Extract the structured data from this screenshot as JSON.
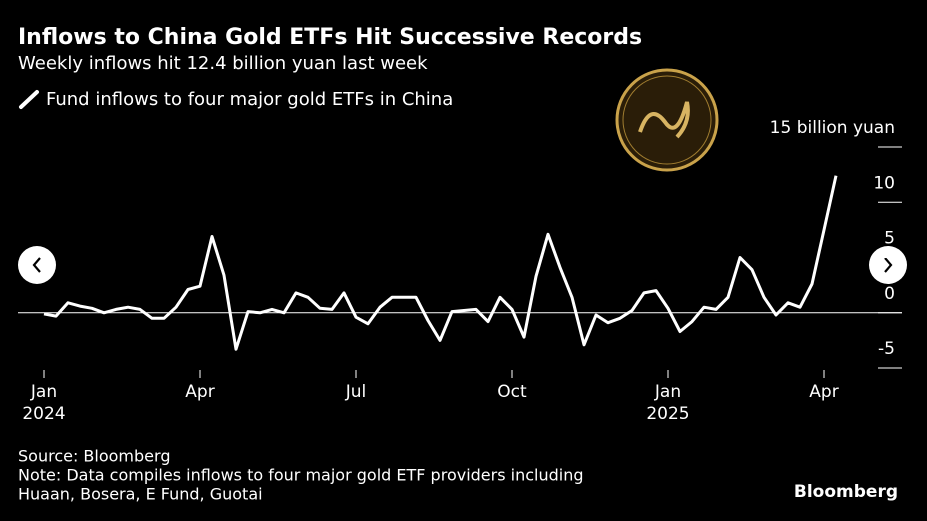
{
  "chart_data": {
    "type": "line",
    "title": "Inflows to China Gold ETFs Hit Successive Records",
    "subtitle": "Weekly inflows hit 12.4 billion yuan last week",
    "source": "Source: Bloomberg",
    "note": [
      "Note: Data compiles inflows to four major gold ETF providers including",
      "Huaan, Bosera, E Fund, Guotai"
    ],
    "brand": "Bloomberg",
    "categories": [
      "Jan 2024",
      null,
      null,
      null,
      null,
      null,
      null,
      null,
      null,
      null,
      null,
      null,
      null,
      "Apr",
      null,
      null,
      null,
      null,
      null,
      null,
      null,
      null,
      null,
      null,
      null,
      null,
      "Jul",
      null,
      null,
      null,
      null,
      null,
      null,
      null,
      null,
      null,
      null,
      null,
      null,
      "Oct",
      null,
      null,
      null,
      null,
      null,
      null,
      null,
      null,
      null,
      null,
      null,
      null,
      "Jan 2025",
      null,
      null,
      null,
      null,
      null,
      null,
      null,
      null,
      null,
      null,
      null,
      null,
      "Apr",
      null
    ],
    "series": [
      {
        "name": "Fund inflows to four major gold ETFs in China",
        "color": "#ffffff",
        "values": [
          -0.1,
          -0.3,
          0.9,
          0.6,
          0.4,
          0,
          0.3,
          0.5,
          0.3,
          -0.5,
          -0.5,
          0.5,
          2.1,
          2.4,
          6.9,
          3.4,
          -3.3,
          0.1,
          0,
          0.3,
          0,
          1.8,
          1.4,
          0.4,
          0.3,
          1.8,
          -0.4,
          -1.0,
          0.5,
          1.4,
          1.4,
          1.4,
          -0.7,
          -2.5,
          0.1,
          0.2,
          0.3,
          -0.8,
          1.4,
          0.3,
          -2.2,
          3.3,
          7.1,
          4.1,
          1.4,
          -2.9,
          -0.2,
          -0.9,
          -0.5,
          0.2,
          1.8,
          2.0,
          0.4,
          -1.7,
          -0.8,
          0.5,
          0.3,
          1.4,
          5.0,
          3.9,
          1.4,
          -0.2,
          0.9,
          0.5,
          2.6,
          7.5,
          12.4
        ]
      }
    ],
    "ylim": [
      -5,
      15
    ],
    "yticks": [
      -5,
      0,
      5,
      10,
      {
        "value": 15,
        "label": "15 billion yuan"
      }
    ],
    "zero_line": true,
    "grid": false
  }
}
